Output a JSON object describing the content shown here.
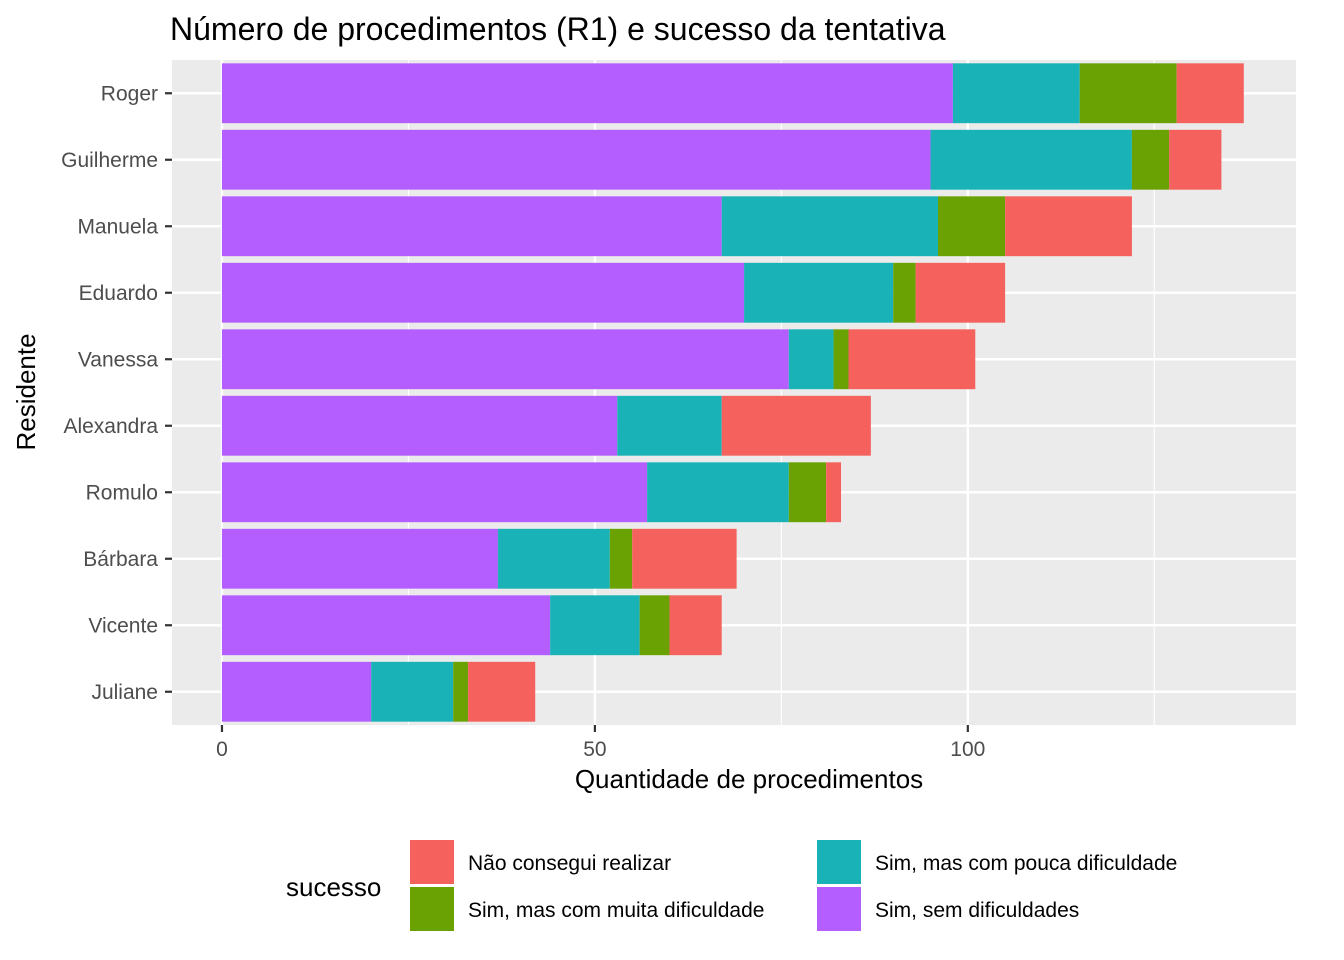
{
  "chart_data": {
    "type": "bar",
    "orientation": "horizontal",
    "stacked": true,
    "title": "Número de procedimentos (R1) e sucesso da tentativa",
    "xlabel": "Quantidade de procedimentos",
    "ylabel": "Residente",
    "xlim": [
      -6.7,
      144
    ],
    "xticks": [
      0,
      50,
      100
    ],
    "grid": true,
    "categories": [
      "Roger",
      "Guilherme",
      "Manuela",
      "Eduardo",
      "Vanessa",
      "Alexandra",
      "Romulo",
      "Bárbara",
      "Vicente",
      "Juliane"
    ],
    "series": [
      {
        "name": "Sim, sem dificuldades",
        "color": "#B55EFF",
        "values": [
          98,
          95,
          67,
          70,
          76,
          53,
          57,
          37,
          44,
          20
        ]
      },
      {
        "name": "Sim, mas com pouca dificuldade",
        "color": "#19B3B7",
        "values": [
          17,
          27,
          29,
          20,
          6,
          14,
          19,
          15,
          12,
          11
        ]
      },
      {
        "name": "Sim, mas com muita dificuldade",
        "color": "#6AA103",
        "values": [
          13,
          5,
          9,
          3,
          2,
          0,
          5,
          3,
          4,
          2
        ]
      },
      {
        "name": "Não consegui realizar",
        "color": "#F5615C",
        "values": [
          9,
          7,
          17,
          12,
          17,
          20,
          2,
          14,
          7,
          9
        ]
      }
    ],
    "legend": {
      "title": "sucesso",
      "position": "bottom",
      "order": [
        "Não consegui realizar",
        "Sim, mas com pouca dificuldade",
        "Sim, mas com muita dificuldade",
        "Sim, sem dificuldades"
      ]
    }
  }
}
